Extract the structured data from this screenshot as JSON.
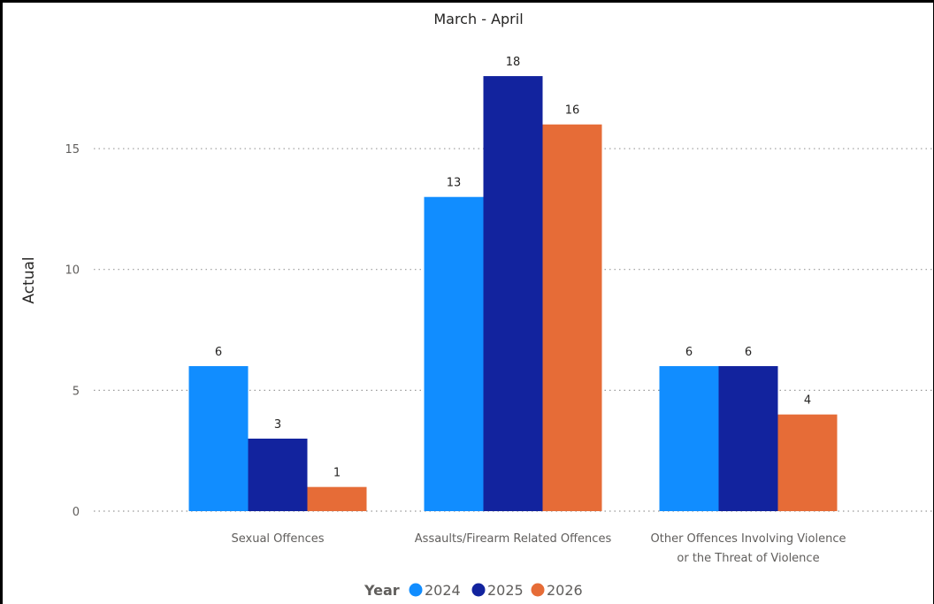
{
  "chart_data": {
    "type": "bar",
    "title": "March - April",
    "ylabel": "Actual",
    "xlabel": "",
    "ylim": [
      0,
      18
    ],
    "yticks": [
      0,
      5,
      10,
      15
    ],
    "grid": true,
    "legend": {
      "title": "Year",
      "position": "bottom-center"
    },
    "categories": [
      [
        "Sexual Offences"
      ],
      [
        "Assaults/Firearm Related Offences"
      ],
      [
        "Other Offences Involving Violence",
        "or the Threat of Violence"
      ]
    ],
    "series": [
      {
        "name": "2024",
        "color": "#118dff",
        "values": [
          6,
          13,
          6
        ]
      },
      {
        "name": "2025",
        "color": "#12239e",
        "values": [
          3,
          18,
          6
        ]
      },
      {
        "name": "2026",
        "color": "#e66c37",
        "values": [
          1,
          16,
          4
        ]
      }
    ]
  }
}
